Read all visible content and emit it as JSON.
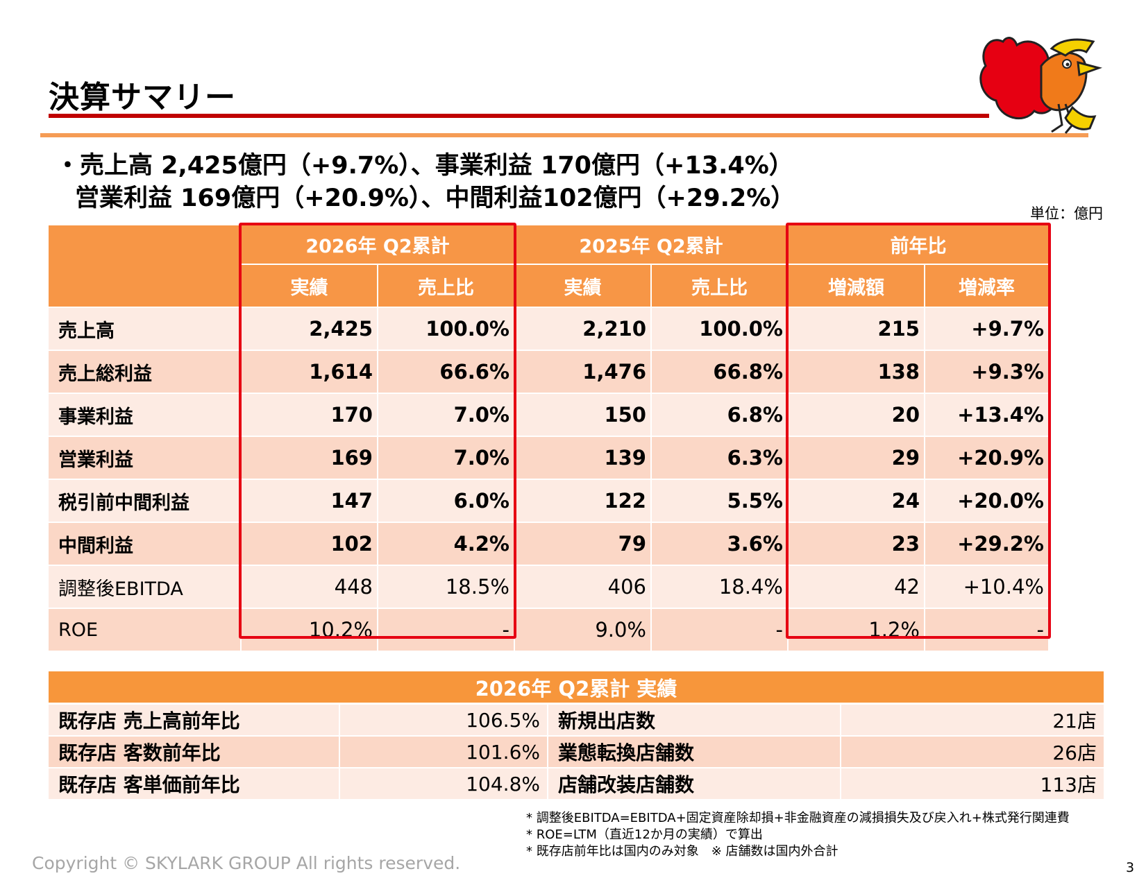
{
  "page": {
    "title": "決算サマリー",
    "headline_line1": "・売上高 2,425億円（+9.7%）、事業利益 170億円（+13.4%）",
    "headline_line2": "営業利益 169億円（+20.9%）、中間利益102億円（+29.2%）",
    "unit": "単位：億円",
    "page_number": "3",
    "copyright": "Copyright © SKYLARK GROUP All rights reserved."
  },
  "summary_table": {
    "group_headers": [
      "2026年 Q2累計",
      "2025年 Q2累計",
      "前年比"
    ],
    "sub_headers": [
      "実績",
      "売上比",
      "実績",
      "売上比",
      "増減額",
      "増減率"
    ],
    "rows": [
      {
        "label": "売上高",
        "values": [
          "2,425",
          "100.0%",
          "2,210",
          "100.0%",
          "215",
          "+9.7%"
        ]
      },
      {
        "label": "売上総利益",
        "values": [
          "1,614",
          "66.6%",
          "1,476",
          "66.8%",
          "138",
          "+9.3%"
        ]
      },
      {
        "label": "事業利益",
        "values": [
          "170",
          "7.0%",
          "150",
          "6.8%",
          "20",
          "+13.4%"
        ]
      },
      {
        "label": "営業利益",
        "values": [
          "169",
          "7.0%",
          "139",
          "6.3%",
          "29",
          "+20.9%"
        ]
      },
      {
        "label": "税引前中間利益",
        "values": [
          "147",
          "6.0%",
          "122",
          "5.5%",
          "24",
          "+20.0%"
        ]
      },
      {
        "label": "中間利益",
        "values": [
          "102",
          "4.2%",
          "79",
          "3.6%",
          "23",
          "+29.2%"
        ]
      },
      {
        "label": "調整後EBITDA",
        "values": [
          "448",
          "18.5%",
          "406",
          "18.4%",
          "42",
          "+10.4%"
        ]
      },
      {
        "label": "ROE",
        "values": [
          "10.2%",
          "-",
          "9.0%",
          "-",
          "1.2%",
          "-"
        ]
      }
    ]
  },
  "results_table": {
    "header": "2026年 Q2累計 実績",
    "rows": [
      {
        "label_left": "既存店 売上高前年比",
        "value_left": "106.5%",
        "label_right": "新規出店数",
        "value_right": "21店"
      },
      {
        "label_left": "既存店 客数前年比",
        "value_left": "101.6%",
        "label_right": "業態転換店舗数",
        "value_right": "26店"
      },
      {
        "label_left": "既存店 客単価前年比",
        "value_left": "104.8%",
        "label_right": "店舗改装店舗数",
        "value_right": "113店"
      }
    ]
  },
  "notes": [
    "* 調整後EBITDA=EBITDA+固定資産除却損+非金融資産の減損損失及び戻入れ+株式発行関連費",
    "* ROE=LTM（直近12か月の実績）で算出",
    "* 既存店前年比は国内のみ対象　※ 店舗数は国内外合計"
  ],
  "colors": {
    "header_orange": "#f79646",
    "row_light": "#fdebe3",
    "row_dark": "#fbd7c6",
    "highlight_red": "#e60012",
    "title_rule_red": "#c00000"
  }
}
